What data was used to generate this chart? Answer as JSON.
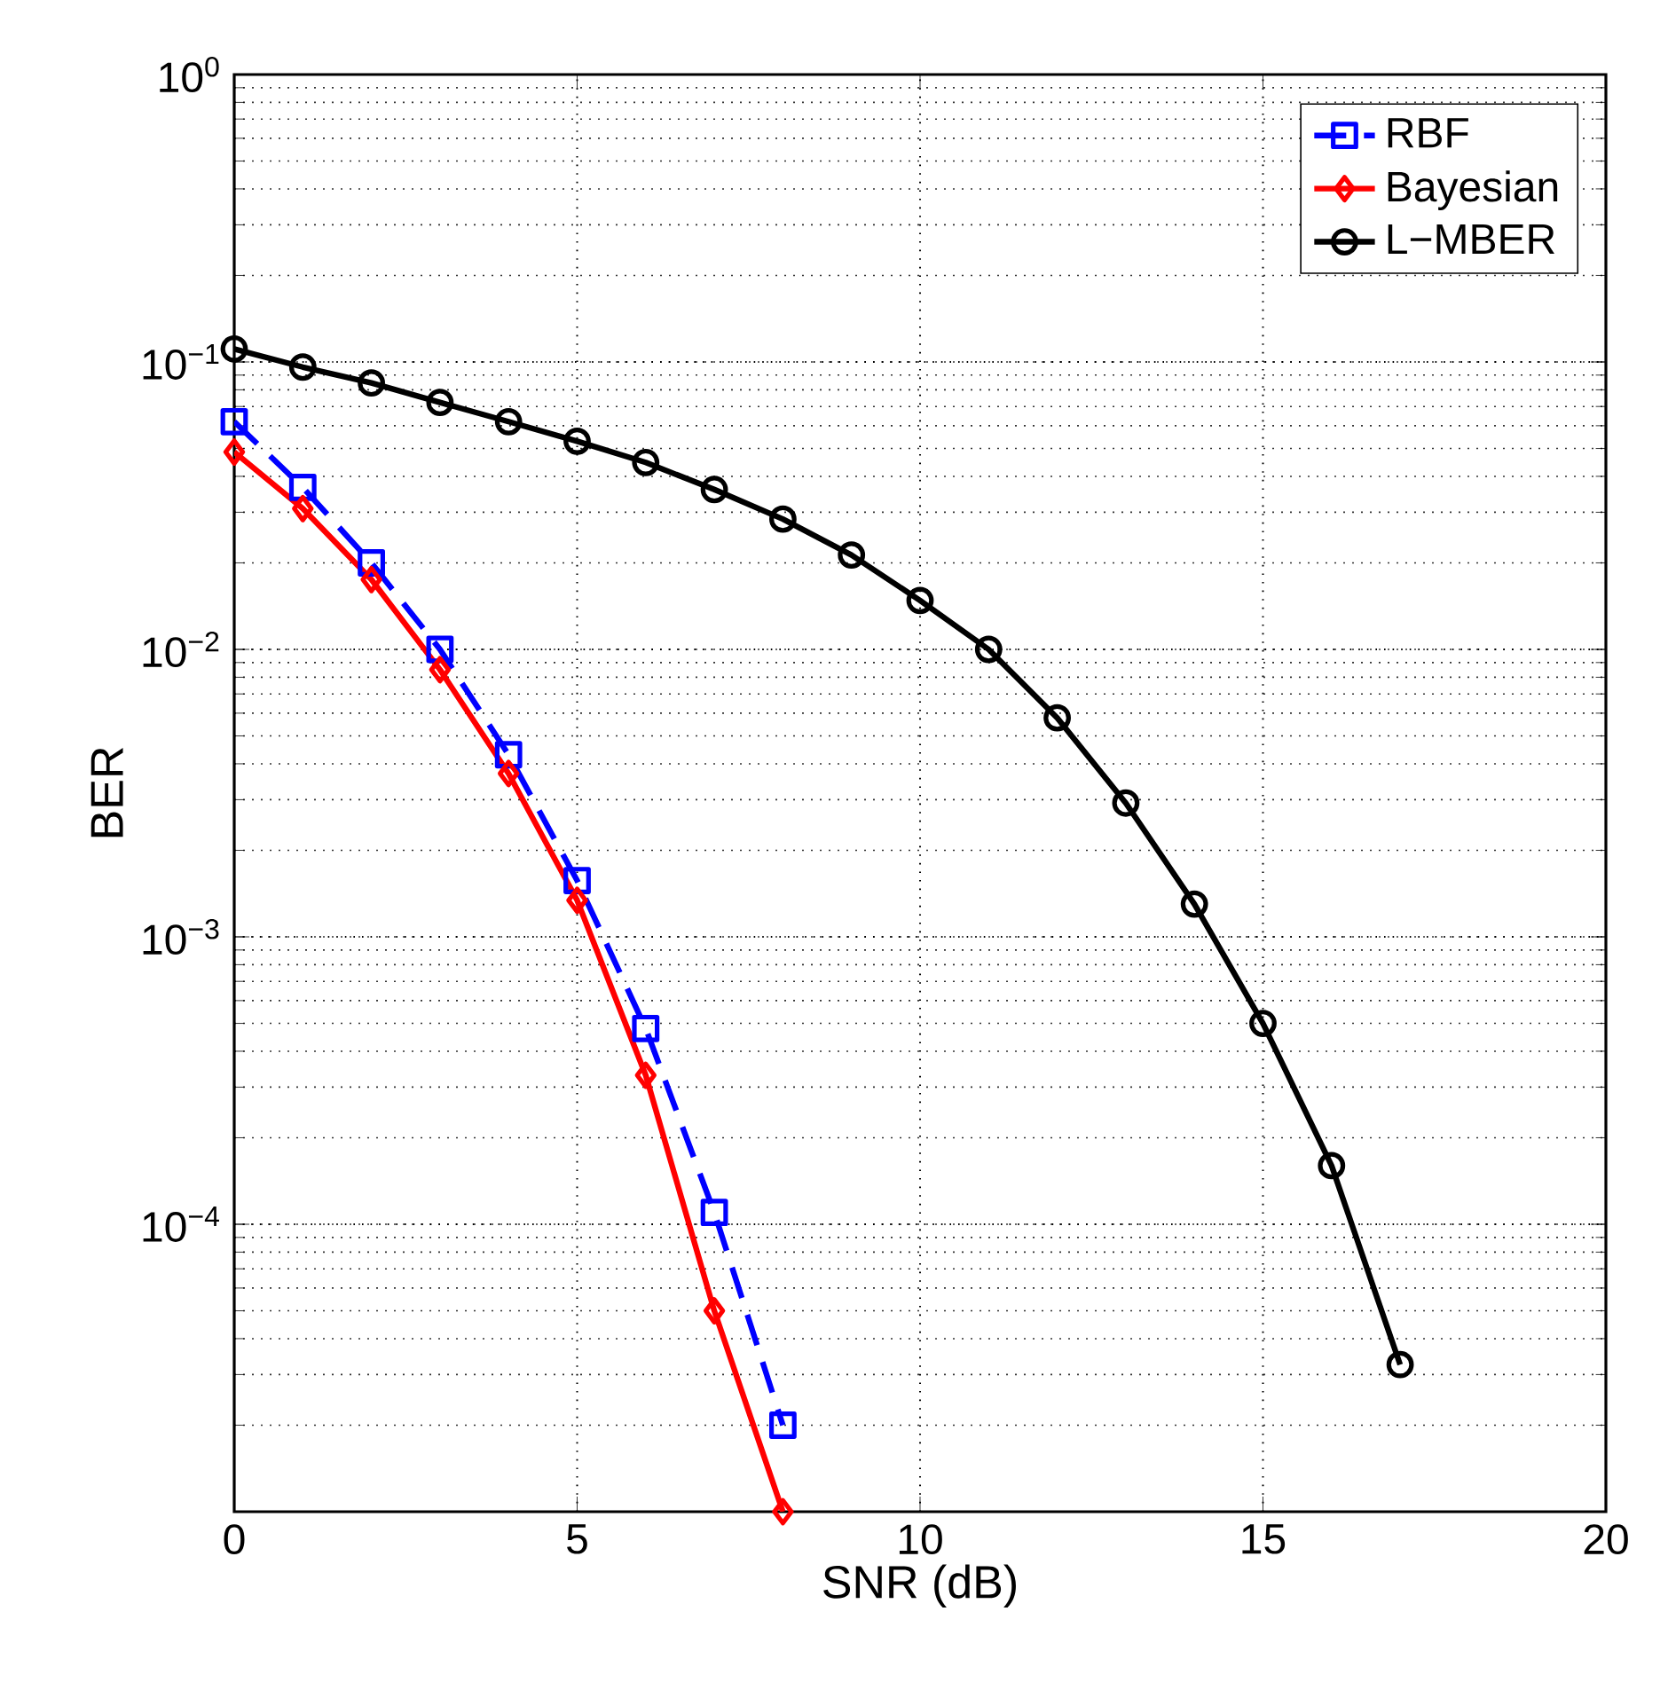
{
  "chart_data": {
    "type": "line",
    "xlabel": "SNR (dB)",
    "ylabel": "BER",
    "log": "y",
    "grid": true,
    "legend": "top right",
    "xlim": [
      0,
      20
    ],
    "xticks": [
      0,
      5,
      10,
      15,
      20
    ],
    "ylim": [
      1e-05,
      1
    ],
    "yticks": [
      {
        "value": 1e-05,
        "label": null
      },
      {
        "value": 0.0001,
        "label": "10$^{−4}$"
      },
      {
        "value": 0.001,
        "label": "10$^{−3}$"
      },
      {
        "value": 0.01,
        "label": "10$^{−2}$"
      },
      {
        "value": 0.1,
        "label": "10$^{−1}$"
      },
      {
        "value": 1,
        "label": "10$^{0}$"
      }
    ],
    "series": [
      {
        "name": "RBF",
        "color": "#0000ff",
        "marker": "square",
        "line_style": "dashed",
        "x": [
          0,
          1,
          2,
          3,
          4,
          5,
          6,
          7,
          8
        ],
        "values": [
          0.062,
          0.0366,
          0.02,
          0.01,
          0.0043,
          0.00157,
          0.00048,
          0.00011,
          2e-05
        ]
      },
      {
        "name": "Bayesian",
        "color": "#ff0000",
        "marker": "diamond",
        "line_style": "solid",
        "x": [
          0,
          1,
          2,
          3,
          4,
          5,
          6,
          7,
          8
        ],
        "values": [
          0.0486,
          0.0309,
          0.0175,
          0.0085,
          0.0037,
          0.00134,
          0.00033,
          5e-05,
          1e-05
        ]
      },
      {
        "name": "L−MBER",
        "color": "#000000",
        "marker": "circle",
        "line_style": "solid",
        "x": [
          0,
          1,
          2,
          3,
          4,
          5,
          6,
          7,
          8,
          9,
          10,
          11,
          12,
          13,
          14,
          15,
          16,
          17
        ],
        "values": [
          0.111,
          0.096,
          0.0845,
          0.0723,
          0.062,
          0.053,
          0.0447,
          0.036,
          0.0284,
          0.0213,
          0.0148,
          0.01,
          0.00578,
          0.00292,
          0.0013,
          0.0005,
          0.00016,
          3.25e-05
        ]
      }
    ]
  }
}
